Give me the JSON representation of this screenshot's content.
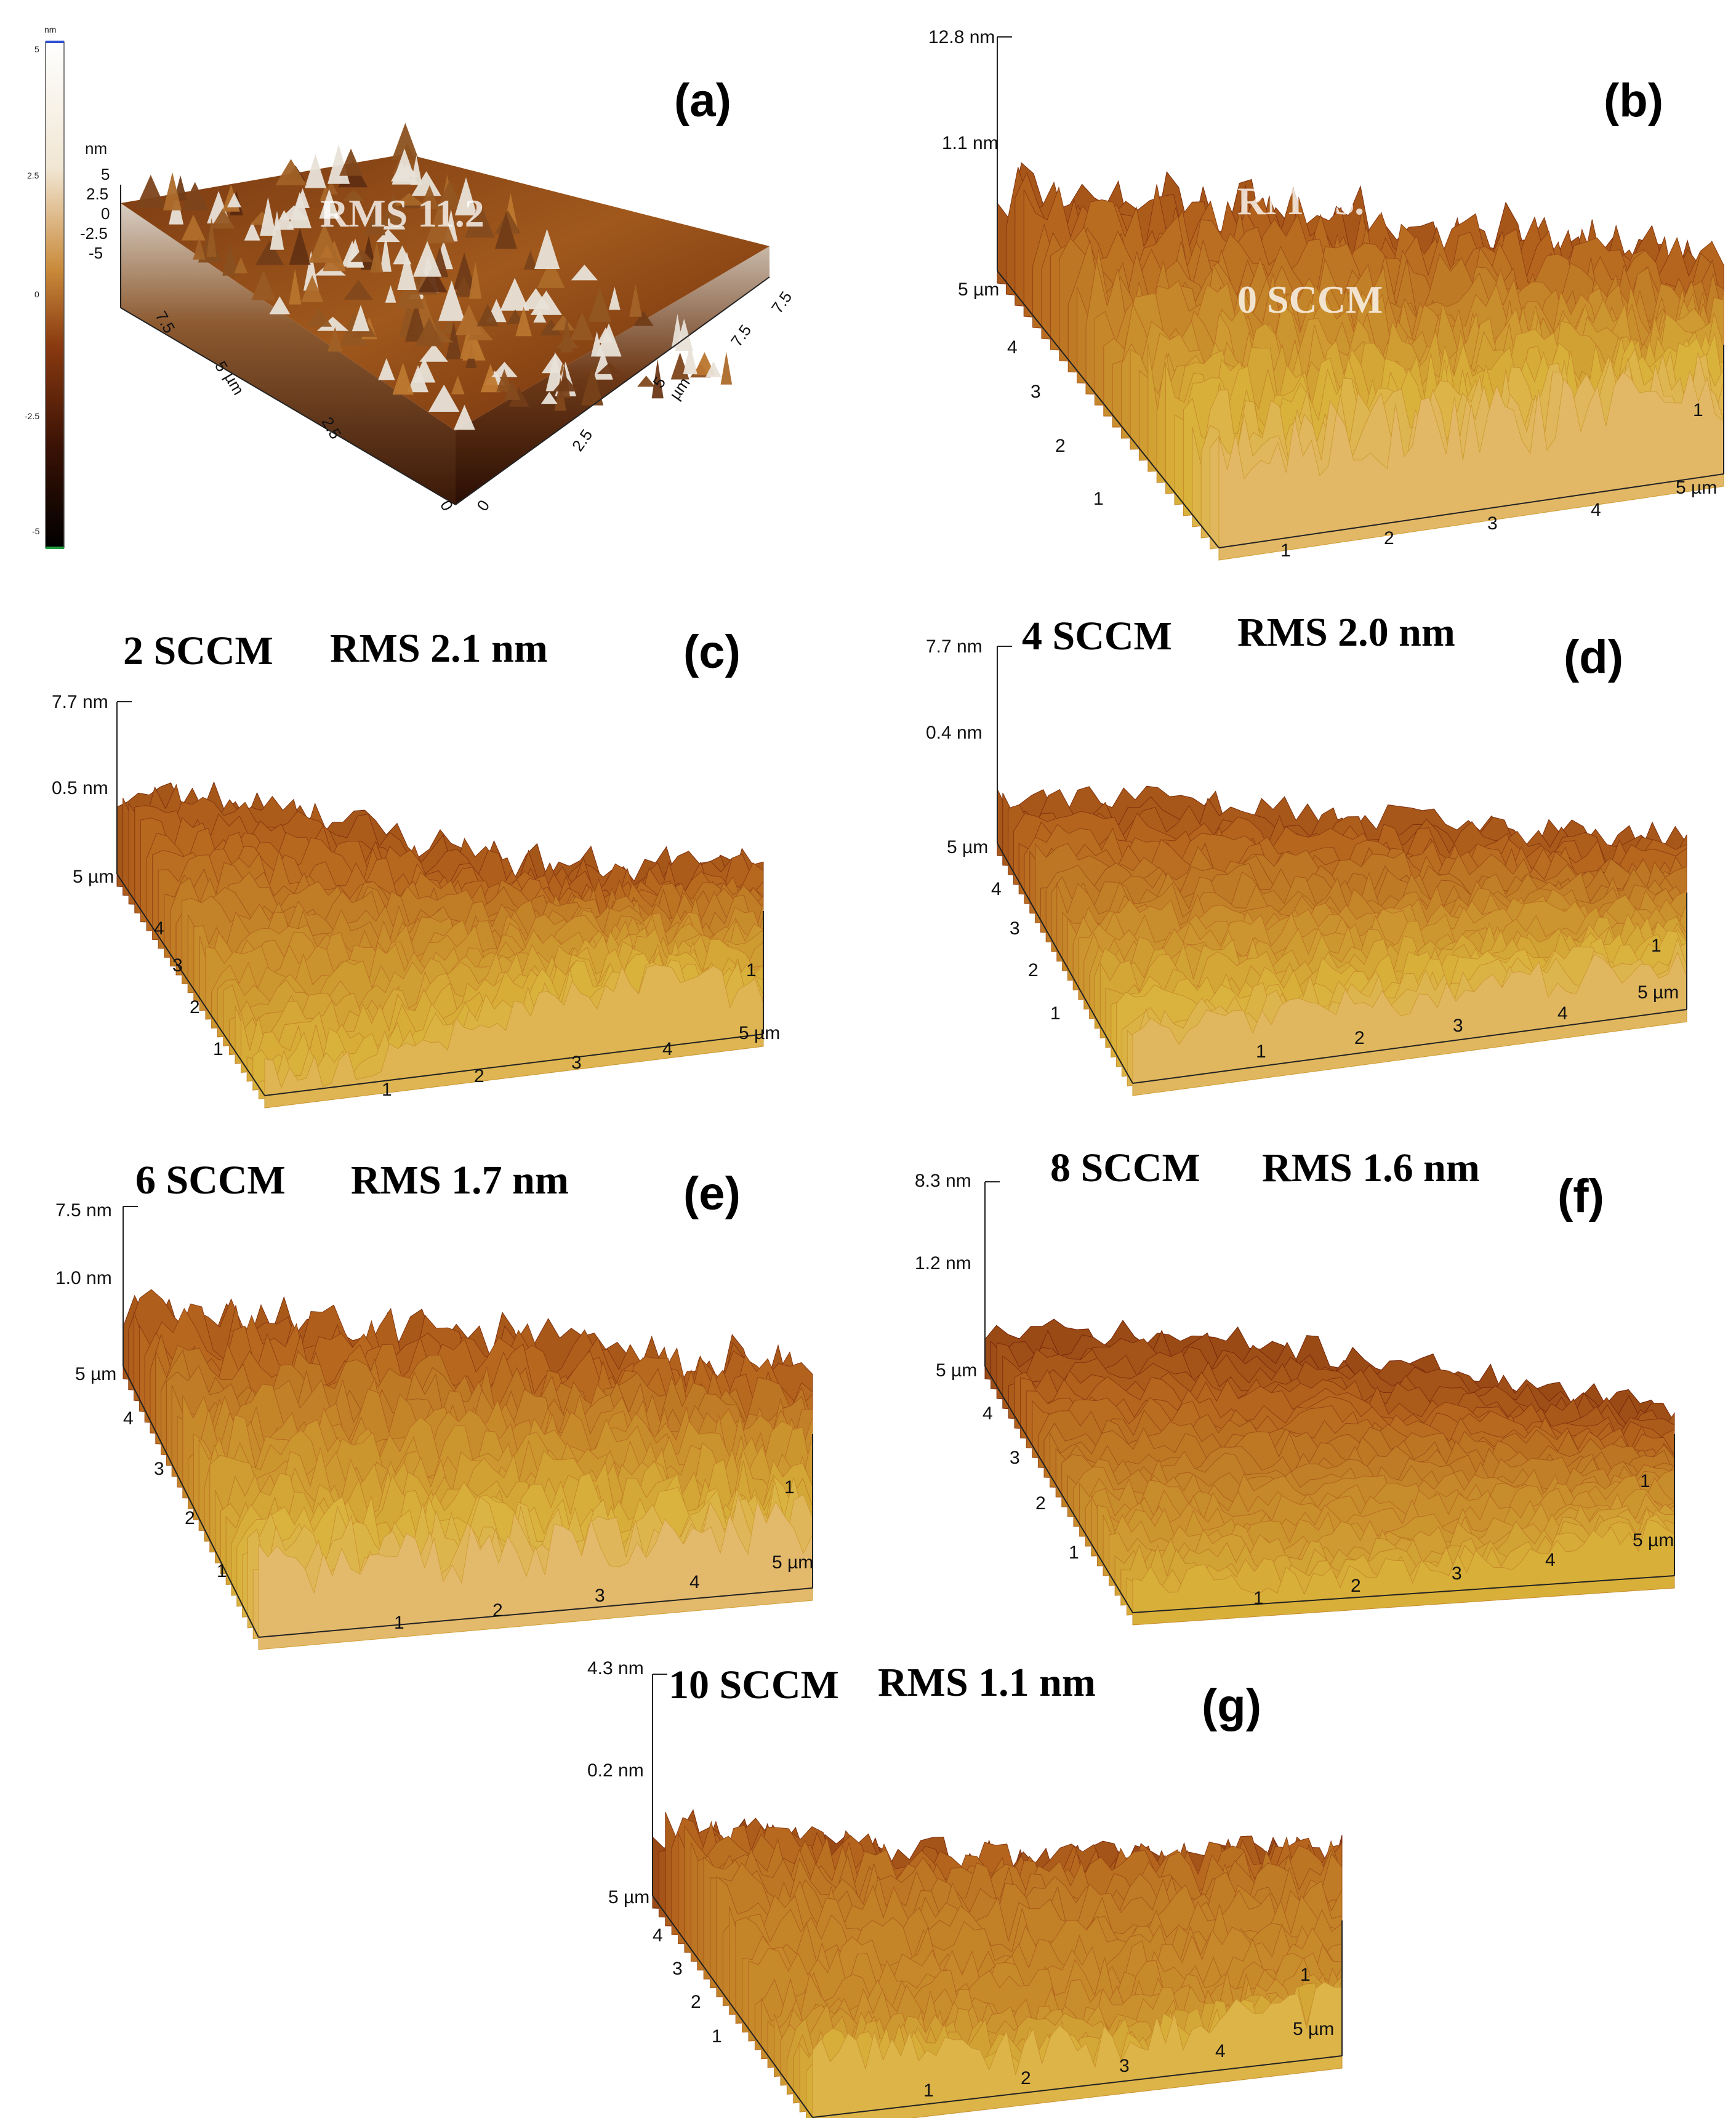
{
  "panels": {
    "a": {
      "label": "(a)",
      "overlay": "RMS 11.2",
      "colorbar": {
        "unit": "nm",
        "ticks": [
          "5",
          "2.5",
          "0",
          "-2.5",
          "-5"
        ]
      },
      "zaxis": {
        "unit": "nm",
        "ticks": [
          "5",
          "2.5",
          "0",
          "-2.5",
          "-5"
        ]
      },
      "axis1": [
        "7.5",
        "5",
        "2.5",
        "0"
      ],
      "axis1_unit": "µm",
      "axis2": [
        "7.5",
        "5",
        "2.5",
        "0"
      ],
      "axis2_unit": "µm"
    },
    "b": {
      "label": "(b)",
      "overlay1": "RMS 3.4",
      "overlay2": "0 SCCM",
      "z_top": "12.8 nm",
      "z_mid": "1.1 nm",
      "ticks": {
        "y": [
          "5 µm",
          "4",
          "3",
          "2",
          "1"
        ],
        "x": [
          "1",
          "2",
          "3",
          "4",
          "5 µm"
        ],
        "r": "1"
      }
    },
    "c": {
      "label": "(c)",
      "header1": "2 SCCM",
      "header2": "RMS 2.1 nm",
      "z_top": "7.7 nm",
      "z_mid": "0.5 nm",
      "ticks": {
        "y": [
          "5 µm",
          "4",
          "3",
          "2",
          "1"
        ],
        "x": [
          "1",
          "2",
          "3",
          "4",
          "5 µm"
        ],
        "r": "1"
      }
    },
    "d": {
      "label": "(d)",
      "header1": "4 SCCM",
      "header2": "RMS 2.0 nm",
      "z_top": "7.7 nm",
      "z_mid": "0.4 nm",
      "ticks": {
        "y": [
          "5 µm",
          "4",
          "3",
          "2",
          "1"
        ],
        "x": [
          "1",
          "2",
          "3",
          "4",
          "5 µm"
        ],
        "r": "1"
      }
    },
    "e": {
      "label": "(e)",
      "header1": "6 SCCM",
      "header2": "RMS 1.7 nm",
      "z_top": "7.5 nm",
      "z_mid": "1.0 nm",
      "ticks": {
        "y": [
          "5 µm",
          "4",
          "3",
          "2",
          "1"
        ],
        "x": [
          "1",
          "2",
          "3",
          "4",
          "5 µm"
        ],
        "r": "1"
      }
    },
    "f": {
      "label": "(f)",
      "header1": "8 SCCM",
      "header2": "RMS 1.6 nm",
      "z_top": "8.3 nm",
      "z_mid": "1.2 nm",
      "ticks": {
        "y": [
          "5 µm",
          "4",
          "3",
          "2",
          "1"
        ],
        "x": [
          "1",
          "2",
          "3",
          "4",
          "5 µm"
        ],
        "r": "1"
      }
    },
    "g": {
      "label": "(g)",
      "header1": "10 SCCM",
      "header2": "RMS 1.1 nm",
      "z_top": "4.3 nm",
      "z_mid": "0.2 nm",
      "ticks": {
        "y": [
          "5 µm",
          "4",
          "3",
          "2",
          "1"
        ],
        "x": [
          "1",
          "2",
          "3",
          "4",
          "5 µm"
        ],
        "r": "1"
      }
    }
  },
  "colors": {
    "surface_dark": "#6b1c08",
    "surface_mid": "#b5651d",
    "surface_light": "#d9b23a",
    "surface_peak": "#f2c4b8",
    "a_light": "#e8e2d8",
    "a_dark": "#5a2a10"
  }
}
